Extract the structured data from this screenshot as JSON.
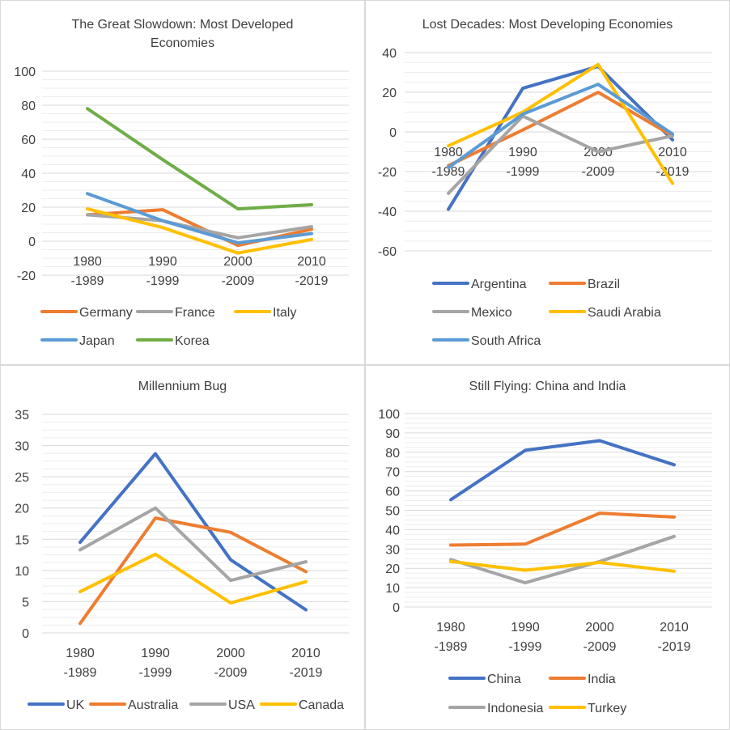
{
  "colors": {
    "blue": "#4472C4",
    "orange": "#ED7D31",
    "gray": "#A5A5A5",
    "yellow": "#FFC000",
    "lightblue": "#5B9BD5",
    "green": "#70AD47"
  },
  "chart_data": [
    {
      "type": "line",
      "title": "The Great Slowdown: Most Developed Economies",
      "title_lines": [
        "The Great Slowdown: Most Developed",
        "Economies"
      ],
      "categories": [
        "1980 -1989",
        "1990 -1999",
        "2000 -2009",
        "2010 -2019"
      ],
      "category_lines": [
        [
          "1980",
          "-1989"
        ],
        [
          "1990",
          "-1999"
        ],
        [
          "2000",
          "-2009"
        ],
        [
          "2010",
          "-2019"
        ]
      ],
      "ylim": [
        -20,
        100
      ],
      "yticks": [
        -20,
        0,
        20,
        40,
        60,
        80,
        100
      ],
      "series": [
        {
          "name": "Germany",
          "color": "#ED7D31",
          "values": [
            15.5,
            18.5,
            -2.5,
            7
          ]
        },
        {
          "name": "France",
          "color": "#A5A5A5",
          "values": [
            15.5,
            12,
            2,
            8.5
          ]
        },
        {
          "name": "Italy",
          "color": "#FFC000",
          "values": [
            19,
            8,
            -7,
            1
          ]
        },
        {
          "name": "Japan",
          "color": "#5B9BD5",
          "values": [
            28,
            12,
            -1,
            4.5
          ]
        },
        {
          "name": "Korea",
          "color": "#70AD47",
          "values": [
            78,
            48,
            19,
            21.5
          ]
        }
      ],
      "legend": [
        [
          "Germany",
          "France",
          "Italy"
        ],
        [
          "Japan",
          "Korea"
        ]
      ]
    },
    {
      "type": "line",
      "title": "Lost Decades: Most Developing Economies",
      "title_lines": [
        "Lost Decades: Most Developing Economies"
      ],
      "categories": [
        "1980 -1989",
        "1990 -1999",
        "2000 -2009",
        "2010 -2019"
      ],
      "category_lines": [
        [
          "1980",
          "-1989"
        ],
        [
          "1990",
          "-1999"
        ],
        [
          "2000",
          "-2009"
        ],
        [
          "2010",
          "-2019"
        ]
      ],
      "ylim": [
        -60,
        40
      ],
      "yticks": [
        -60,
        -40,
        -20,
        0,
        20,
        40
      ],
      "series": [
        {
          "name": "Argentina",
          "color": "#4472C4",
          "values": [
            -39,
            22,
            33,
            -4
          ]
        },
        {
          "name": "Brazil",
          "color": "#ED7D31",
          "values": [
            -17,
            1,
            20,
            -2
          ]
        },
        {
          "name": "Mexico",
          "color": "#A5A5A5",
          "values": [
            -31,
            8,
            -10,
            -2
          ]
        },
        {
          "name": "Saudi Arabia",
          "color": "#FFC000",
          "values": [
            -7,
            10,
            34,
            -26
          ]
        },
        {
          "name": "South Africa",
          "color": "#5B9BD5",
          "values": [
            -18,
            9,
            24,
            -1
          ]
        }
      ],
      "legend": [
        [
          "Argentina",
          "Brazil"
        ],
        [
          "Mexico",
          "Saudi Arabia"
        ],
        [
          "South Africa"
        ]
      ]
    },
    {
      "type": "line",
      "title": "Millennium Bug",
      "title_lines": [
        "Millennium Bug"
      ],
      "categories": [
        "1980 -1989",
        "1990 -1999",
        "2000 -2009",
        "2010 -2019"
      ],
      "category_lines": [
        [
          "1980",
          "-1989"
        ],
        [
          "1990",
          "-1999"
        ],
        [
          "2000",
          "-2009"
        ],
        [
          "2010",
          "-2019"
        ]
      ],
      "ylim": [
        0,
        35
      ],
      "yticks": [
        0,
        5,
        10,
        15,
        20,
        25,
        30,
        35
      ],
      "series": [
        {
          "name": "UK",
          "color": "#4472C4",
          "values": [
            14.5,
            28.7,
            11.7,
            3.7
          ]
        },
        {
          "name": "Australia",
          "color": "#ED7D31",
          "values": [
            1.5,
            18.4,
            16.1,
            9.8
          ]
        },
        {
          "name": "USA",
          "color": "#A5A5A5",
          "values": [
            13.3,
            20,
            8.4,
            11.4
          ]
        },
        {
          "name": "Canada",
          "color": "#FFC000",
          "values": [
            6.6,
            12.6,
            4.8,
            8.2
          ]
        }
      ],
      "legend": [
        [
          "UK",
          "Australia",
          "USA",
          "Canada"
        ]
      ]
    },
    {
      "type": "line",
      "title": "Still Flying: China and India",
      "title_lines": [
        "Still Flying: China and India"
      ],
      "categories": [
        "1980 -1989",
        "1990 -1999",
        "2000 -2009",
        "2010 -2019"
      ],
      "category_lines": [
        [
          "1980",
          "-1989"
        ],
        [
          "1990",
          "-1999"
        ],
        [
          "2000",
          "-2009"
        ],
        [
          "2010",
          "-2019"
        ]
      ],
      "ylim": [
        0,
        100
      ],
      "yticks": [
        0,
        10,
        20,
        30,
        40,
        50,
        60,
        70,
        80,
        90,
        100
      ],
      "series": [
        {
          "name": "China",
          "color": "#4472C4",
          "values": [
            55.5,
            81,
            86,
            73.5
          ]
        },
        {
          "name": "India",
          "color": "#ED7D31",
          "values": [
            32,
            32.5,
            48.5,
            46.5
          ]
        },
        {
          "name": "Indonesia",
          "color": "#A5A5A5",
          "values": [
            24.5,
            12.5,
            23.5,
            36.5
          ]
        },
        {
          "name": "Turkey",
          "color": "#FFC000",
          "values": [
            23.5,
            19,
            23,
            18.5
          ]
        }
      ],
      "legend": [
        [
          "China",
          "India"
        ],
        [
          "Indonesia",
          "Turkey"
        ]
      ]
    }
  ]
}
